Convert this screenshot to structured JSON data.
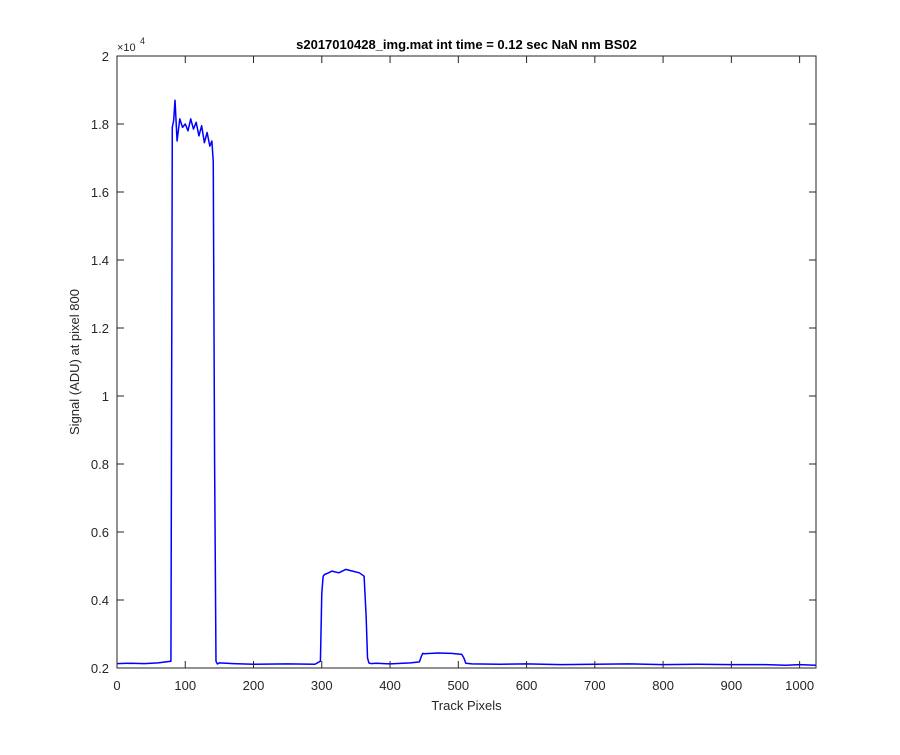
{
  "chart_data": {
    "type": "line",
    "title": "s2017010428_img.mat int time = 0.12 sec  NaN nm BS02",
    "xlabel": "Track Pixels",
    "ylabel": "Signal (ADU) at pixel 800",
    "xlim": [
      0,
      1024
    ],
    "ylim": [
      2000,
      20000
    ],
    "x_ticks": [
      0,
      100,
      200,
      300,
      400,
      500,
      600,
      700,
      800,
      900,
      1000
    ],
    "x_tick_labels": [
      "0",
      "100",
      "200",
      "300",
      "400",
      "500",
      "600",
      "700",
      "800",
      "900",
      "1000"
    ],
    "y_ticks": [
      2000,
      4000,
      6000,
      8000,
      10000,
      12000,
      14000,
      16000,
      18000,
      20000
    ],
    "y_tick_labels": [
      "0.2",
      "0.4",
      "0.6",
      "0.8",
      "1",
      "1.2",
      "1.4",
      "1.6",
      "1.8",
      "2"
    ],
    "y_exponent_label": "×10",
    "y_exponent_power": "4",
    "grid": false,
    "line_color": "#0000ff",
    "series": [
      {
        "values_x": [
          0,
          20,
          40,
          60,
          79,
          81,
          83,
          85,
          88,
          92,
          96,
          100,
          104,
          108,
          112,
          116,
          120,
          124,
          128,
          132,
          136,
          139,
          141,
          143,
          145,
          147,
          150,
          170,
          200,
          250,
          290,
          298,
          300,
          302,
          304,
          308,
          315,
          325,
          335,
          345,
          355,
          362,
          365,
          367,
          369,
          372,
          380,
          400,
          430,
          443,
          446,
          448,
          450,
          470,
          490,
          505,
          508,
          511,
          520,
          560,
          600,
          650,
          700,
          750,
          800,
          850,
          900,
          950,
          980,
          1000,
          1024
        ],
        "values_y": [
          2130,
          2140,
          2130,
          2150,
          2200,
          17900,
          18100,
          18700,
          17500,
          18150,
          17900,
          18000,
          17800,
          18150,
          17850,
          18050,
          17650,
          17950,
          17450,
          17750,
          17350,
          17500,
          16900,
          8000,
          2200,
          2120,
          2150,
          2130,
          2110,
          2120,
          2110,
          2200,
          4200,
          4700,
          4750,
          4780,
          4850,
          4800,
          4900,
          4850,
          4800,
          4700,
          3500,
          2300,
          2150,
          2130,
          2140,
          2120,
          2150,
          2180,
          2350,
          2430,
          2420,
          2440,
          2430,
          2400,
          2300,
          2140,
          2120,
          2110,
          2120,
          2100,
          2110,
          2120,
          2100,
          2110,
          2100,
          2100,
          2080,
          2100,
          2080
        ]
      }
    ]
  }
}
